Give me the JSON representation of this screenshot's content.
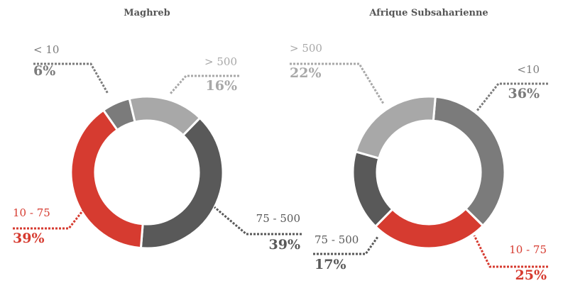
{
  "chart_data": [
    {
      "type": "donut",
      "title": "Maghreb",
      "categories": [
        "< 10",
        "> 500",
        "75 - 500",
        "10 - 75"
      ],
      "values": [
        6,
        16,
        39,
        39
      ],
      "value_labels": [
        "6%",
        "16%",
        "39%",
        "39%"
      ],
      "colors": [
        "#7b7b7b",
        "#a8a8a8",
        "#595959",
        "#d63b30"
      ]
    },
    {
      "type": "donut",
      "title": "Afrique Subsaharienne",
      "categories": [
        "<10",
        "10 - 75",
        "75 - 500",
        "> 500"
      ],
      "values": [
        36,
        25,
        17,
        22
      ],
      "value_labels": [
        "36%",
        "25%",
        "17%",
        "22%"
      ],
      "colors": [
        "#7b7b7b",
        "#d63b30",
        "#595959",
        "#a8a8a8"
      ]
    }
  ]
}
